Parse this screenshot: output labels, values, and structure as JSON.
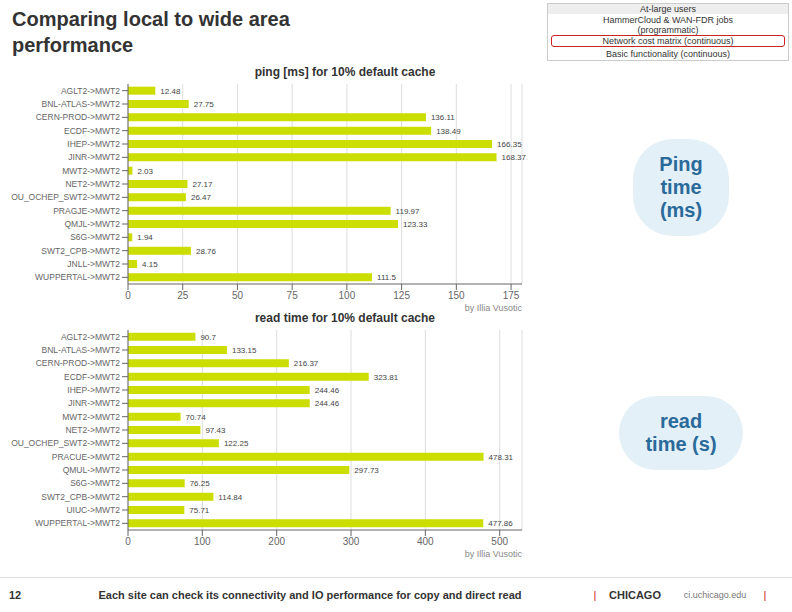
{
  "title": "Comparing local to wide area\nperformance",
  "annotations": [
    "At-large users",
    "HammerCloud & WAN-FDR jobs\n(programmatic)",
    "Network cost matrix (continuous)",
    "Basic functionality (continuous)",
    "Each site can check its connectivity and IO performance for copy and direct read",
    "12",
    "CHICAGO",
    "|",
    "ci.uchicago.edu",
    "|"
  ],
  "chart_data": [
    {
      "type": "bar",
      "orientation": "horizontal",
      "title": "ping [ms] for 10% default cache",
      "categories": [
        "AGLT2->MWT2",
        "BNL-ATLAS->MWT2",
        "CERN-PROD->MWT2",
        "ECDF->MWT2",
        "IHEP->MWT2",
        "JINR->MWT2",
        "MWT2->MWT2",
        "NET2->MWT2",
        "OU_OCHEP_SWT2->MWT2",
        "PRAGJE->MWT2",
        "QMJL->MWT2",
        "S6G->MWT2",
        "SWT2_CPB->MWT2",
        "JNLL->MWT2",
        "WUPPERTAL->MWT2"
      ],
      "values": [
        12.48,
        27.75,
        136.11,
        138.49,
        166.35,
        168.37,
        2.03,
        27.17,
        26.47,
        119.97,
        123.33,
        1.94,
        28.76,
        4.15,
        111.5
      ],
      "color": "#ccdd00",
      "xlim": [
        0,
        180
      ],
      "xticks": [
        0,
        25,
        50,
        75,
        100,
        125,
        150,
        175
      ],
      "grid": true,
      "data_labels": true,
      "annotations": [
        "Ping\ntime\n(ms)",
        "by Illia Vusotic"
      ]
    },
    {
      "type": "bar",
      "orientation": "horizontal",
      "title": "read time for 10% default cache",
      "categories": [
        "AGLT2->MWT2",
        "BNL-ATLAS->MWT2",
        "CERN-PROD->MWT2",
        "ECDF->MWT2",
        "IHEP->MWT2",
        "JINR->MWT2",
        "MWT2->MWT2",
        "NET2->MWT2",
        "OU_OCHEP_SWT2->MWT2",
        "PRACUE->MWT2",
        "QMUL->MWT2",
        "S6G->MWT2",
        "SWT2_CPB->MWT2",
        "UIUC->MWT2",
        "WUPPERTAL->MWT2"
      ],
      "values": [
        90.7,
        133.15,
        216.37,
        323.81,
        244.46,
        244.46,
        70.74,
        97.43,
        122.25,
        478.31,
        297.73,
        76.25,
        114.84,
        75.71,
        477.86
      ],
      "color": "#ccdd00",
      "xlim": [
        0,
        530
      ],
      "xticks": [
        0,
        100,
        200,
        300,
        400,
        500
      ],
      "grid": true,
      "data_labels": true,
      "annotations": [
        "read\ntime (s)",
        "by Illia Vusotic"
      ]
    }
  ]
}
